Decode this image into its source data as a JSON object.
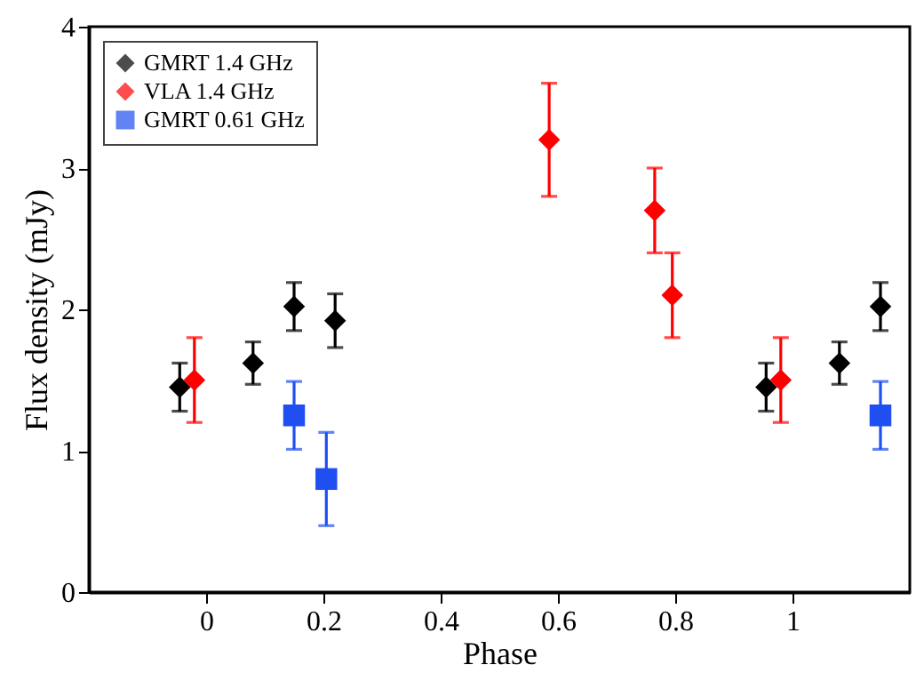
{
  "chart_data": {
    "type": "scatter",
    "xlabel": "Phase",
    "ylabel": "Flux density (mJy)",
    "xlim": [
      -0.2,
      1.2
    ],
    "xticks": [
      0,
      0.2,
      0.4,
      0.6,
      0.8,
      1
    ],
    "ylim": [
      0,
      4
    ],
    "yticks": [
      0,
      1,
      2,
      3,
      4
    ],
    "grid": false,
    "legend": "top left",
    "series": [
      {
        "name": "GMRT 1.4 GHz",
        "color": "#000000",
        "marker": "diamond",
        "x": [
          -0.045,
          0.08,
          0.15,
          0.22,
          0.955,
          1.08,
          1.15
        ],
        "values": [
          1.45,
          1.62,
          2.02,
          1.92,
          1.45,
          1.62,
          2.02
        ],
        "errors": [
          0.17,
          0.15,
          0.17,
          0.19,
          0.17,
          0.15,
          0.17
        ]
      },
      {
        "name": "VLA 1.4 GHz",
        "color": "#ff0000",
        "marker": "diamond",
        "x": [
          -0.02,
          0.585,
          0.765,
          0.795,
          0.98
        ],
        "values": [
          1.5,
          3.2,
          2.7,
          2.1,
          1.5
        ],
        "errors": [
          0.3,
          0.4,
          0.3,
          0.3,
          0.3
        ]
      },
      {
        "name": "GMRT 0.61 GHz",
        "color": "#1f4ff0",
        "marker": "square",
        "x": [
          0.15,
          0.205,
          1.15
        ],
        "values": [
          1.25,
          0.8,
          1.25
        ],
        "errors": [
          0.24,
          [
            0.47,
            1.13
          ],
          0.24
        ]
      }
    ]
  }
}
